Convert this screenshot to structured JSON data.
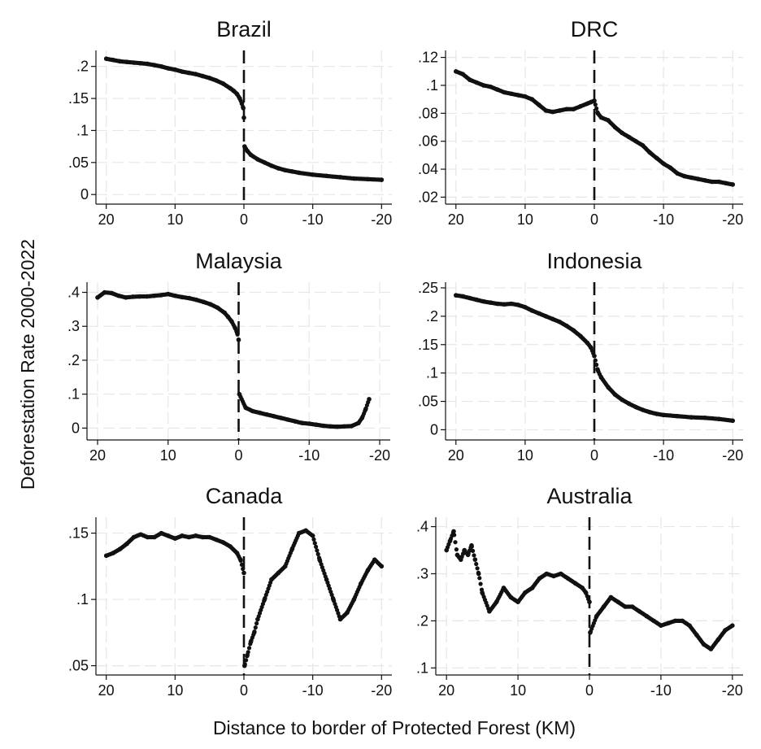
{
  "figure": {
    "ylabel": "Deforestation Rate 2000-2022",
    "xlabel": "Distance to border of Protected Forest (KM)"
  },
  "chart_data": [
    {
      "type": "scatter",
      "title": "Brazil",
      "xlim": [
        21.5,
        -21.5
      ],
      "ylim": [
        -0.015,
        0.225
      ],
      "xticks": [
        20,
        10,
        0,
        -10,
        -20
      ],
      "xtick_labels": [
        "20",
        "10",
        "0",
        "-10",
        "-20"
      ],
      "yticks": [
        0,
        0.05,
        0.1,
        0.15,
        0.2
      ],
      "ytick_labels": [
        "0",
        ".05",
        ".1",
        ".15",
        ".2"
      ],
      "cutoff_line": 0,
      "series": [
        {
          "x": [
            20,
            19,
            18,
            17,
            16,
            15,
            14,
            13,
            12,
            11,
            10,
            9,
            8,
            7,
            6,
            5,
            4,
            3,
            2,
            1.5,
            1,
            0.6,
            0.3,
            0.1,
            0,
            -0.1,
            -0.5,
            -1,
            -2,
            -3,
            -4,
            -5,
            -6,
            -7,
            -8,
            -10,
            -12,
            -14,
            -16,
            -18,
            -20
          ],
          "y": [
            0.212,
            0.21,
            0.208,
            0.207,
            0.206,
            0.205,
            0.204,
            0.202,
            0.2,
            0.197,
            0.195,
            0.192,
            0.19,
            0.188,
            0.185,
            0.182,
            0.178,
            0.173,
            0.166,
            0.162,
            0.157,
            0.15,
            0.142,
            0.135,
            0.12,
            0.075,
            0.068,
            0.062,
            0.055,
            0.05,
            0.045,
            0.041,
            0.038,
            0.036,
            0.034,
            0.031,
            0.029,
            0.027,
            0.025,
            0.024,
            0.023
          ]
        }
      ]
    },
    {
      "type": "scatter",
      "title": "DRC",
      "xlim": [
        21.5,
        -21.5
      ],
      "ylim": [
        0.015,
        0.125
      ],
      "xticks": [
        20,
        10,
        0,
        -10,
        -20
      ],
      "xtick_labels": [
        "20",
        "10",
        "0",
        "-10",
        "-20"
      ],
      "yticks": [
        0.02,
        0.04,
        0.06,
        0.08,
        0.1,
        0.12
      ],
      "ytick_labels": [
        ".02",
        ".04",
        ".06",
        ".08",
        ".1",
        ".12"
      ],
      "cutoff_line": 0,
      "series": [
        {
          "x": [
            20,
            19,
            18,
            17,
            16,
            15,
            14,
            13,
            12,
            11,
            10,
            9,
            8,
            7,
            6,
            5,
            4,
            3,
            2,
            1,
            0.5,
            0,
            -0.5,
            -1,
            -2,
            -3,
            -4,
            -5,
            -6,
            -7,
            -8,
            -9,
            -10,
            -11,
            -12,
            -13,
            -14,
            -15,
            -16,
            -17,
            -18,
            -19,
            -20
          ],
          "y": [
            0.11,
            0.108,
            0.104,
            0.102,
            0.1,
            0.099,
            0.097,
            0.095,
            0.094,
            0.093,
            0.092,
            0.09,
            0.086,
            0.082,
            0.081,
            0.082,
            0.083,
            0.083,
            0.085,
            0.087,
            0.088,
            0.089,
            0.08,
            0.077,
            0.075,
            0.07,
            0.066,
            0.063,
            0.06,
            0.057,
            0.052,
            0.048,
            0.044,
            0.041,
            0.037,
            0.035,
            0.034,
            0.033,
            0.032,
            0.031,
            0.031,
            0.03,
            0.029
          ]
        }
      ]
    },
    {
      "type": "scatter",
      "title": "Malaysia",
      "xlim": [
        21.5,
        -21.5
      ],
      "ylim": [
        -0.035,
        0.43
      ],
      "xticks": [
        20,
        10,
        0,
        -10,
        -20
      ],
      "xtick_labels": [
        "20",
        "10",
        "0",
        "-10",
        "-20"
      ],
      "yticks": [
        0,
        0.1,
        0.2,
        0.3,
        0.4
      ],
      "ytick_labels": [
        "0",
        ".1",
        ".2",
        ".3",
        ".4"
      ],
      "cutoff_line": 0,
      "series": [
        {
          "x": [
            20,
            19,
            18,
            17,
            16,
            15,
            14,
            13,
            12,
            11,
            10,
            9,
            8,
            7,
            6,
            5,
            4,
            3,
            2,
            1.5,
            1,
            0.5,
            0.2,
            0,
            -0.1,
            -1,
            -2,
            -3,
            -4,
            -5,
            -6,
            -7,
            -8,
            -9,
            -10,
            -11,
            -12,
            -13,
            -14,
            -15,
            -16,
            -17,
            -17.5,
            -18,
            -18.5
          ],
          "y": [
            0.385,
            0.4,
            0.398,
            0.39,
            0.385,
            0.387,
            0.388,
            0.388,
            0.39,
            0.392,
            0.395,
            0.39,
            0.386,
            0.383,
            0.378,
            0.372,
            0.365,
            0.355,
            0.34,
            0.328,
            0.315,
            0.295,
            0.28,
            0.26,
            0.1,
            0.06,
            0.05,
            0.045,
            0.04,
            0.035,
            0.03,
            0.025,
            0.02,
            0.015,
            0.013,
            0.01,
            0.007,
            0.005,
            0.004,
            0.005,
            0.006,
            0.015,
            0.03,
            0.055,
            0.085
          ]
        }
      ]
    },
    {
      "type": "scatter",
      "title": "Indonesia",
      "xlim": [
        21.5,
        -21.5
      ],
      "ylim": [
        -0.018,
        0.26
      ],
      "xticks": [
        20,
        10,
        0,
        -10,
        -20
      ],
      "xtick_labels": [
        "20",
        "10",
        "0",
        "-10",
        "-20"
      ],
      "yticks": [
        0,
        0.05,
        0.1,
        0.15,
        0.2,
        0.25
      ],
      "ytick_labels": [
        "0",
        ".05",
        ".1",
        ".15",
        ".2",
        ".25"
      ],
      "cutoff_line": 0,
      "series": [
        {
          "x": [
            20,
            19,
            18,
            17,
            16,
            15,
            14,
            13,
            12,
            11,
            10,
            9,
            8,
            7,
            6,
            5,
            4,
            3,
            2,
            1,
            0.5,
            0,
            -0.5,
            -1,
            -2,
            -3,
            -4,
            -5,
            -6,
            -7,
            -8,
            -9,
            -10,
            -12,
            -14,
            -16,
            -18,
            -20
          ],
          "y": [
            0.237,
            0.235,
            0.232,
            0.229,
            0.226,
            0.224,
            0.222,
            0.221,
            0.222,
            0.22,
            0.216,
            0.21,
            0.205,
            0.2,
            0.195,
            0.19,
            0.183,
            0.175,
            0.165,
            0.153,
            0.145,
            0.13,
            0.105,
            0.092,
            0.075,
            0.062,
            0.053,
            0.046,
            0.04,
            0.035,
            0.031,
            0.028,
            0.026,
            0.024,
            0.022,
            0.021,
            0.019,
            0.016
          ]
        }
      ]
    },
    {
      "type": "scatter",
      "title": "Canada",
      "xlim": [
        21.5,
        -21.5
      ],
      "ylim": [
        0.043,
        0.162
      ],
      "xticks": [
        20,
        10,
        0,
        -10,
        -20
      ],
      "xtick_labels": [
        "20",
        "10",
        "0",
        "-10",
        "-20"
      ],
      "yticks": [
        0.05,
        0.1,
        0.15
      ],
      "ytick_labels": [
        ".05",
        ".1",
        ".15"
      ],
      "cutoff_line": 0,
      "series": [
        {
          "x": [
            20,
            19,
            18,
            17,
            16,
            15,
            14,
            13,
            12,
            11,
            10,
            9,
            8,
            7,
            6,
            5,
            4,
            3,
            2,
            1,
            0.5,
            0,
            -0.1,
            -0.5,
            -1,
            -1.5,
            -2,
            -3,
            -4,
            -5,
            -6,
            -7,
            -8,
            -9,
            -10,
            -11,
            -12,
            -13,
            -14,
            -15,
            -16,
            -17,
            -18,
            -19,
            -20
          ],
          "y": [
            0.133,
            0.135,
            0.138,
            0.142,
            0.147,
            0.149,
            0.147,
            0.147,
            0.15,
            0.148,
            0.146,
            0.148,
            0.147,
            0.148,
            0.147,
            0.147,
            0.145,
            0.143,
            0.14,
            0.135,
            0.13,
            0.12,
            0.05,
            0.058,
            0.068,
            0.075,
            0.085,
            0.1,
            0.115,
            0.12,
            0.125,
            0.138,
            0.15,
            0.152,
            0.148,
            0.13,
            0.115,
            0.1,
            0.085,
            0.09,
            0.1,
            0.112,
            0.122,
            0.13,
            0.125
          ]
        }
      ]
    },
    {
      "type": "scatter",
      "title": "Australia",
      "xlim": [
        21.5,
        -21.5
      ],
      "ylim": [
        0.085,
        0.42
      ],
      "xticks": [
        20,
        10,
        0,
        -10,
        -20
      ],
      "xtick_labels": [
        "20",
        "10",
        "0",
        "-10",
        "-20"
      ],
      "yticks": [
        0.1,
        0.2,
        0.3,
        0.4
      ],
      "ytick_labels": [
        ".1",
        ".2",
        ".3",
        ".4"
      ],
      "cutoff_line": 0,
      "series": [
        {
          "x": [
            20,
            19.5,
            19,
            18.5,
            18,
            17.5,
            17,
            16.5,
            16,
            15.5,
            15,
            14,
            13,
            12,
            11,
            10,
            9,
            8,
            7,
            6,
            5,
            4,
            3,
            2,
            1,
            0.5,
            0,
            -0.1,
            -1,
            -2,
            -3,
            -4,
            -5,
            -6,
            -7,
            -8,
            -9,
            -10,
            -11,
            -12,
            -13,
            -14,
            -15,
            -16,
            -17,
            -18,
            -19,
            -20
          ],
          "y": [
            0.35,
            0.37,
            0.39,
            0.34,
            0.33,
            0.35,
            0.34,
            0.36,
            0.33,
            0.3,
            0.26,
            0.22,
            0.24,
            0.27,
            0.25,
            0.24,
            0.26,
            0.27,
            0.29,
            0.3,
            0.295,
            0.3,
            0.29,
            0.28,
            0.27,
            0.26,
            0.24,
            0.175,
            0.21,
            0.23,
            0.25,
            0.24,
            0.23,
            0.23,
            0.22,
            0.21,
            0.2,
            0.19,
            0.195,
            0.2,
            0.2,
            0.19,
            0.17,
            0.15,
            0.14,
            0.16,
            0.18,
            0.19
          ]
        }
      ]
    }
  ]
}
